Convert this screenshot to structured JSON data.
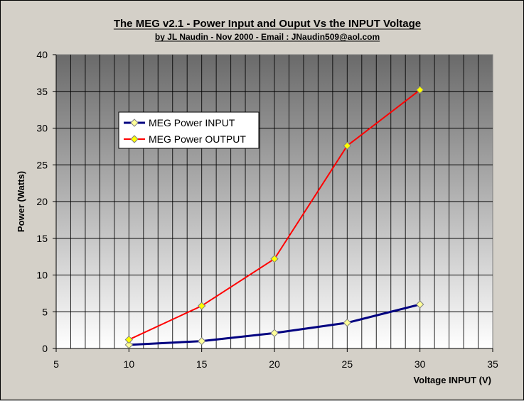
{
  "chart_data": {
    "type": "line",
    "title": "The MEG v2.1 - Power Input and Ouput Vs the INPUT Voltage",
    "subtitle": "by JL Naudin - Nov 2000 - Email : JNaudin509@aol.com",
    "xlabel": "Voltage INPUT (V)",
    "ylabel": "Power (Watts)",
    "xlim": [
      5,
      35
    ],
    "ylim": [
      0,
      40
    ],
    "x_ticks": [
      5,
      10,
      15,
      20,
      25,
      30,
      35
    ],
    "y_ticks": [
      0,
      5,
      10,
      15,
      20,
      25,
      30,
      35,
      40
    ],
    "grid": true,
    "legend_position": "upper-left",
    "series": [
      {
        "name": "MEG Power INPUT",
        "color": "#000080",
        "marker_color": "#ffff99",
        "x": [
          10,
          15,
          20,
          25,
          30
        ],
        "y": [
          0.5,
          1.0,
          2.1,
          3.5,
          6.0
        ]
      },
      {
        "name": "MEG Power OUTPUT",
        "color": "#ff0000",
        "marker_color": "#ffff00",
        "x": [
          10,
          15,
          20,
          25,
          30
        ],
        "y": [
          1.2,
          5.8,
          12.2,
          27.6,
          35.2
        ]
      }
    ],
    "background_gradient": [
      "#6a6a6a",
      "#ffffff"
    ],
    "frame_color": "#d4d0c8"
  }
}
